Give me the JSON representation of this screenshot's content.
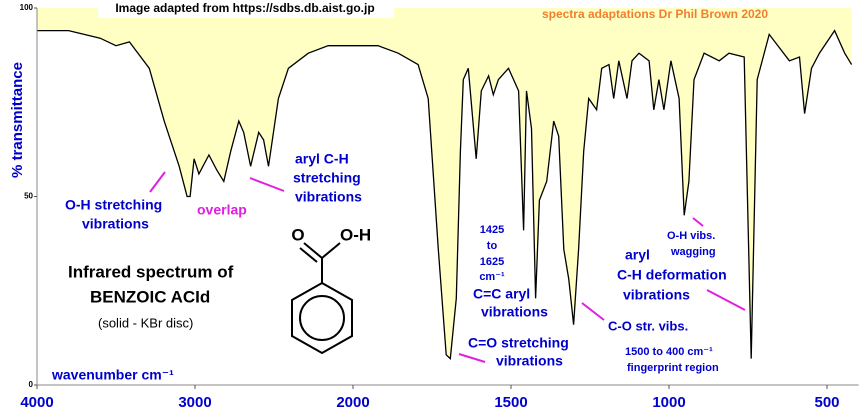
{
  "chart_data": {
    "type": "line",
    "y_label": "% transmittance",
    "x_label": "wavenumber  cm⁻¹",
    "xlim": [
      4000,
      400
    ],
    "xticks": [
      4000,
      3000,
      2000,
      1500,
      1000,
      500
    ],
    "ylim": [
      0,
      100
    ],
    "yticks": [
      0,
      50,
      100
    ],
    "color": "#000000",
    "area_color": "#ffffc4",
    "x": [
      4000,
      3800,
      3600,
      3500,
      3415,
      3289,
      3195,
      3100,
      3050,
      3031,
      3006,
      2975,
      2912,
      2862,
      2818,
      2774,
      2723,
      2692,
      2648,
      2597,
      2566,
      2535,
      2472,
      2409,
      2283,
      2157,
      2000,
      1921,
      1857,
      1794,
      1762,
      1730,
      1705,
      1692,
      1673,
      1660,
      1651,
      1635,
      1610,
      1594,
      1571,
      1556,
      1540,
      1508,
      1476,
      1460,
      1451,
      1435,
      1422,
      1410,
      1387,
      1365,
      1349,
      1333,
      1317,
      1302,
      1286,
      1270,
      1254,
      1229,
      1213,
      1190,
      1175,
      1159,
      1133,
      1117,
      1095,
      1063,
      1048,
      1032,
      1016,
      994,
      968,
      952,
      937,
      921,
      889,
      841,
      810,
      762,
      740,
      721,
      683,
      619,
      587,
      571,
      549,
      524,
      476,
      444,
      422
    ],
    "values": [
      94,
      94,
      92,
      90,
      91,
      84,
      70,
      58,
      50,
      50,
      60,
      56,
      61,
      57,
      54,
      62,
      70,
      67,
      58,
      67,
      65,
      58,
      76,
      84,
      88,
      90,
      90,
      90,
      88,
      85,
      76,
      36,
      8,
      7,
      23,
      62,
      81,
      84,
      60,
      78,
      82,
      77,
      81,
      84,
      78,
      41,
      78,
      68,
      23,
      49,
      54,
      70,
      66,
      36,
      28,
      16,
      36,
      62,
      76,
      73,
      84,
      85,
      76,
      86,
      76,
      86,
      88,
      86,
      73,
      81,
      73,
      86,
      76,
      45,
      54,
      81,
      88,
      86,
      88,
      87,
      7,
      81,
      93,
      86,
      87,
      72,
      84,
      88,
      94,
      88,
      85
    ],
    "annotations": [
      {
        "text": "Image adapted from https://sdbs.db.aist.go.jp",
        "color": "#000000"
      },
      {
        "text": "spectra adaptations Dr Phil Brown 2020",
        "color": "#f08030"
      },
      {
        "text": "O-H stretching",
        "color": "#0000cc"
      },
      {
        "text": "vibrations",
        "color": "#0000cc"
      },
      {
        "text": "overlap",
        "color": "#e020e0"
      },
      {
        "text": "aryl C-H",
        "color": "#0000cc"
      },
      {
        "text": "stretching",
        "color": "#0000cc"
      },
      {
        "text": "vibrations",
        "color": "#0000cc"
      },
      {
        "text": "Infrared spectrum of",
        "color": "#000000"
      },
      {
        "text": "BENZOIC ACId",
        "color": "#000000"
      },
      {
        "text": "(solid - KBr disc)",
        "color": "#000000"
      },
      {
        "text": "1425",
        "color": "#0000cc"
      },
      {
        "text": "to",
        "color": "#0000cc"
      },
      {
        "text": "1625",
        "color": "#0000cc"
      },
      {
        "text": "cm⁻¹",
        "color": "#0000cc"
      },
      {
        "text": "C=C aryl",
        "color": "#0000cc"
      },
      {
        "text": "vibrations",
        "color": "#0000cc"
      },
      {
        "text": "C=O stretching",
        "color": "#0000cc"
      },
      {
        "text": "vibrations",
        "color": "#0000cc"
      },
      {
        "text": "C-O str. vibs.",
        "color": "#0000cc"
      },
      {
        "text": "1500 to 400 cm⁻¹",
        "color": "#0000cc"
      },
      {
        "text": "fingerprint region",
        "color": "#0000cc"
      },
      {
        "text": "O-H vibs.",
        "color": "#0000cc"
      },
      {
        "text": "wagging",
        "color": "#0000cc"
      },
      {
        "text": "aryl",
        "color": "#0000cc"
      },
      {
        "text": "C-H deformation",
        "color": "#0000cc"
      },
      {
        "text": "vibrations",
        "color": "#0000cc"
      }
    ],
    "structure_labels": [
      "O",
      "O-H"
    ]
  }
}
